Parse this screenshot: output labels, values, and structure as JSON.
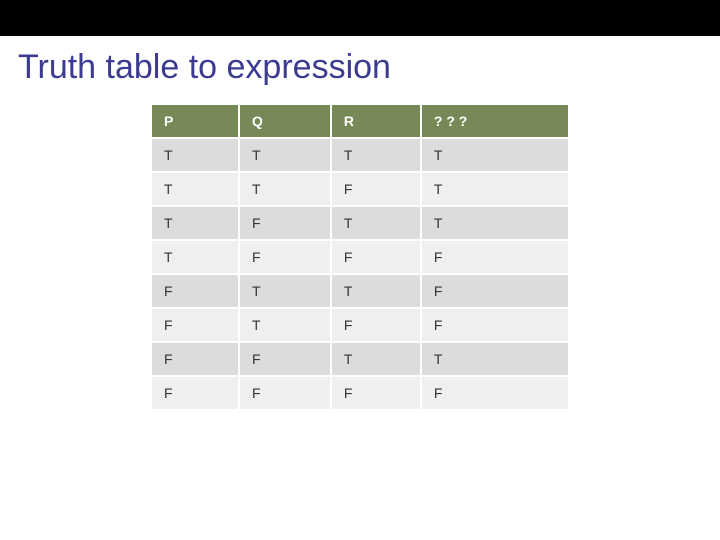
{
  "slide": {
    "title": "Truth table to expression",
    "title_color": "#3b3b8f",
    "top_bar_color": "#000000"
  },
  "truth_table": {
    "type": "table",
    "header_bg": "#788958",
    "header_fg": "#ffffff",
    "row_odd_bg": "#dcdcdc",
    "row_even_bg": "#efefef",
    "cell_fg": "#333333",
    "border_color": "#ffffff",
    "font_size": 14,
    "columns": [
      "P",
      "Q",
      "R",
      "? ? ?"
    ],
    "rows": [
      [
        "T",
        "T",
        "T",
        "T"
      ],
      [
        "T",
        "T",
        "F",
        "T"
      ],
      [
        "T",
        "F",
        "T",
        "T"
      ],
      [
        "T",
        "F",
        "F",
        "F"
      ],
      [
        "F",
        "T",
        "T",
        "F"
      ],
      [
        "F",
        "T",
        "F",
        "F"
      ],
      [
        "F",
        "F",
        "T",
        "T"
      ],
      [
        "F",
        "F",
        "F",
        "F"
      ]
    ]
  }
}
